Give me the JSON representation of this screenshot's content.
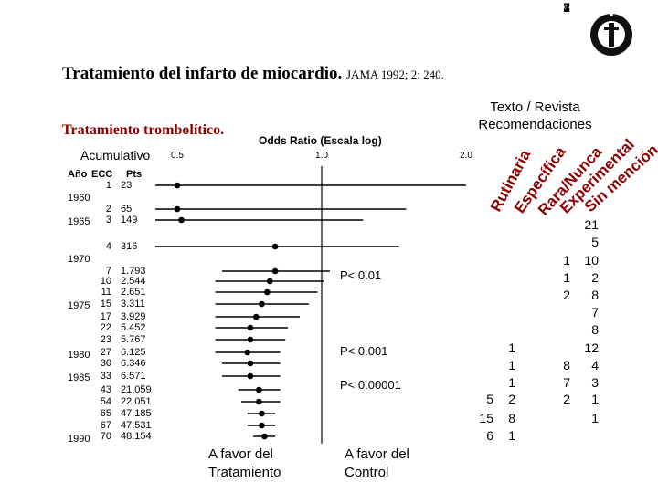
{
  "header": {
    "title": "Tratamiento del infarto de miocardio.",
    "citation": "JAMA 1992; 2: 240.",
    "subtitle": "Tratamiento trombolítico.",
    "texto_revista_line1": "Texto / Revista",
    "texto_revista_line2": "Recomendaciones",
    "odds_label": "Odds Ratio  (Escala log)",
    "acumulativo": "Acumulativo"
  },
  "table_headers": {
    "year": "Año",
    "ecc": "ECC",
    "pts": "Pts"
  },
  "years": [
    "1960",
    "1965",
    "1970",
    "1975",
    "1980",
    "1985",
    "1990"
  ],
  "favor_tratamiento": [
    "A favor del",
    "Tratamiento"
  ],
  "favor_control": [
    "A favor del",
    "Control"
  ],
  "recommendation_categories": [
    {
      "label": "Rutinaria",
      "color": "#8b0000"
    },
    {
      "label": "Específica",
      "color": "#8b0000"
    },
    {
      "label": "Rara/Nunca",
      "color": "#8b0000"
    },
    {
      "label": "Experimental",
      "color": "#8b0000"
    },
    {
      "label": "Sin mención",
      "color": "#8b0000"
    }
  ],
  "recommendation_counts": {
    "rutinaria": [
      "5",
      "15",
      "6"
    ],
    "especifica": [
      "1",
      "1",
      "1",
      "2",
      "8",
      "1"
    ],
    "rara_nunca": [],
    "experimental": [
      "1",
      "1",
      "2",
      "8",
      "7",
      "2"
    ],
    "sin_mencion": [
      "21",
      "5",
      "10",
      "2",
      "8",
      "7",
      "8",
      "12",
      "4",
      "3",
      "1",
      "1"
    ]
  },
  "chart_data": {
    "type": "forest",
    "title": "Tratamiento del infarto de miocardio.",
    "xlabel": "Odds Ratio  (Escala log)",
    "xscale": "log",
    "xlim": [
      0.5,
      2.0
    ],
    "xticks": [
      "0.5",
      "1.0",
      "2.0"
    ],
    "reference_line": 1.0,
    "rows": [
      {
        "ecc": "1",
        "pts": "23",
        "or": 0.5,
        "lo": 0.45,
        "hi": 2.0
      },
      {
        "ecc": "2",
        "pts": "65",
        "or": 0.5,
        "lo": 0.45,
        "hi": 1.5
      },
      {
        "ecc": "3",
        "pts": "149",
        "or": 0.51,
        "lo": 0.45,
        "hi": 1.22
      },
      {
        "ecc": "4",
        "pts": "316",
        "or": 0.8,
        "lo": 0.45,
        "hi": 1.45
      },
      {
        "ecc": "7",
        "pts": "1.793",
        "or": 0.8,
        "lo": 0.62,
        "hi": 1.04
      },
      {
        "ecc": "10",
        "pts": "2.544",
        "or": 0.78,
        "lo": 0.6,
        "hi": 1.01
      },
      {
        "ecc": "11",
        "pts": "2.651",
        "or": 0.77,
        "lo": 0.6,
        "hi": 0.98
      },
      {
        "ecc": "15",
        "pts": "3.311",
        "or": 0.75,
        "lo": 0.6,
        "hi": 0.94
      },
      {
        "ecc": "17",
        "pts": "3.929",
        "or": 0.73,
        "lo": 0.6,
        "hi": 0.9
      },
      {
        "ecc": "22",
        "pts": "5.452",
        "or": 0.71,
        "lo": 0.6,
        "hi": 0.85
      },
      {
        "ecc": "23",
        "pts": "5.767",
        "or": 0.71,
        "lo": 0.6,
        "hi": 0.84
      },
      {
        "ecc": "27",
        "pts": "6.125",
        "or": 0.7,
        "lo": 0.6,
        "hi": 0.82
      },
      {
        "ecc": "30",
        "pts": "6.346",
        "or": 0.71,
        "lo": 0.62,
        "hi": 0.82
      },
      {
        "ecc": "33",
        "pts": "6.571",
        "or": 0.71,
        "lo": 0.62,
        "hi": 0.82
      },
      {
        "ecc": "43",
        "pts": "21.059",
        "or": 0.74,
        "lo": 0.67,
        "hi": 0.82
      },
      {
        "ecc": "54",
        "pts": "22.051",
        "or": 0.74,
        "lo": 0.68,
        "hi": 0.82
      },
      {
        "ecc": "65",
        "pts": "47.185",
        "or": 0.75,
        "lo": 0.7,
        "hi": 0.8
      },
      {
        "ecc": "67",
        "pts": "47.531",
        "or": 0.75,
        "lo": 0.7,
        "hi": 0.8
      },
      {
        "ecc": "70",
        "pts": "48.154",
        "or": 0.76,
        "lo": 0.72,
        "hi": 0.8
      }
    ],
    "pvalues": [
      "P< 0.01",
      "P< 0.001",
      "P< 0.00001"
    ]
  }
}
